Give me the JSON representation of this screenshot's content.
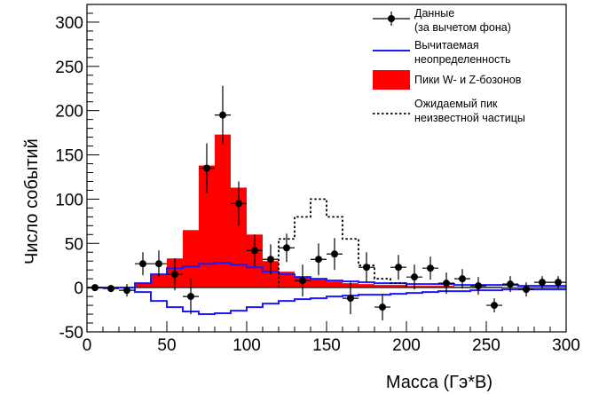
{
  "chart_data": {
    "type": "histogram",
    "xlabel": "Масса (Гэ*В)",
    "ylabel": "Число событий",
    "xlim": [
      0,
      300
    ],
    "ylim": [
      -50,
      320
    ],
    "xticks": [
      0,
      50,
      100,
      150,
      200,
      250,
      300
    ],
    "yticks": [
      -50,
      0,
      50,
      100,
      150,
      200,
      250,
      300
    ],
    "x_tick_labels": [
      "0",
      "50",
      "100",
      "150",
      "200",
      "250",
      "300"
    ],
    "y_tick_labels": [
      "-50",
      "0",
      "50",
      "100",
      "150",
      "200",
      "250",
      "300"
    ],
    "legend_placement": "top-right",
    "legend": {
      "data": [
        "Данные",
        "(за вычетом фона)"
      ],
      "uncertainty": [
        "Вычитаемая",
        "неопределенность"
      ],
      "peaks": [
        "Пики W- и Z-бозонов"
      ],
      "expected": [
        "Ожидаемый пик",
        "неизвестной частицы"
      ]
    },
    "colors": {
      "peaks": "#ff0000",
      "uncertainty": "#1a1aff",
      "data": "#000000",
      "expected": "#000000"
    },
    "bin_edges": [
      0,
      10,
      20,
      30,
      40,
      50,
      60,
      70,
      80,
      90,
      100,
      110,
      120,
      130,
      140,
      150,
      160,
      170,
      180,
      190,
      200,
      210,
      220,
      230,
      240,
      250,
      260,
      270,
      280,
      290,
      300
    ],
    "series": [
      {
        "name": "Пики W- и Z-бозонов",
        "type": "histogram",
        "values": [
          0,
          0,
          0,
          5,
          15,
          33,
          65,
          138,
          173,
          113,
          60,
          30,
          18,
          12,
          10,
          7,
          5,
          4,
          3,
          3,
          2,
          2,
          2,
          1,
          1,
          1,
          0,
          0,
          0,
          0
        ]
      },
      {
        "name": "Вычитаемая неопределенность",
        "type": "band",
        "upper": [
          0,
          0,
          0,
          5,
          15,
          22,
          24,
          27,
          28,
          26,
          23,
          18,
          15,
          12,
          10,
          8,
          7,
          6,
          5,
          5,
          4,
          4,
          4,
          3,
          3,
          3,
          3,
          2,
          2,
          2
        ],
        "lower": [
          0,
          0,
          0,
          -5,
          -15,
          -22,
          -27,
          -30,
          -29,
          -26,
          -22,
          -18,
          -15,
          -13,
          -12,
          -10,
          -9,
          -8,
          -8,
          -7,
          -6,
          -5,
          -4,
          -4,
          -3,
          -3,
          -2,
          -2,
          -2,
          -2
        ]
      },
      {
        "name": "Ожидаемый пик неизвестной частицы",
        "type": "dashed-histogram",
        "values": [
          null,
          null,
          null,
          null,
          null,
          null,
          null,
          null,
          null,
          null,
          null,
          null,
          55,
          80,
          100,
          80,
          55,
          25,
          10,
          5,
          null,
          null,
          null,
          null,
          null,
          null,
          null,
          null,
          null,
          null
        ]
      },
      {
        "name": "Данные (за вычетом фона)",
        "type": "points",
        "x": [
          5,
          15,
          25,
          35,
          45,
          55,
          65,
          75,
          85,
          95,
          105,
          115,
          125,
          135,
          145,
          155,
          165,
          175,
          185,
          195,
          205,
          215,
          225,
          235,
          245,
          255,
          265,
          275,
          285,
          295
        ],
        "y": [
          0,
          -1,
          -3,
          27,
          27,
          15,
          -10,
          135,
          195,
          95,
          42,
          32,
          45,
          8,
          32,
          38,
          -12,
          23,
          -22,
          23,
          12,
          22,
          5,
          10,
          2,
          -20,
          4,
          -2,
          6,
          6
        ],
        "yerr": [
          0,
          3,
          7,
          13,
          15,
          18,
          20,
          28,
          33,
          25,
          18,
          17,
          16,
          18,
          18,
          18,
          18,
          17,
          15,
          14,
          14,
          13,
          12,
          11,
          10,
          8,
          9,
          8,
          7,
          7
        ]
      }
    ]
  }
}
